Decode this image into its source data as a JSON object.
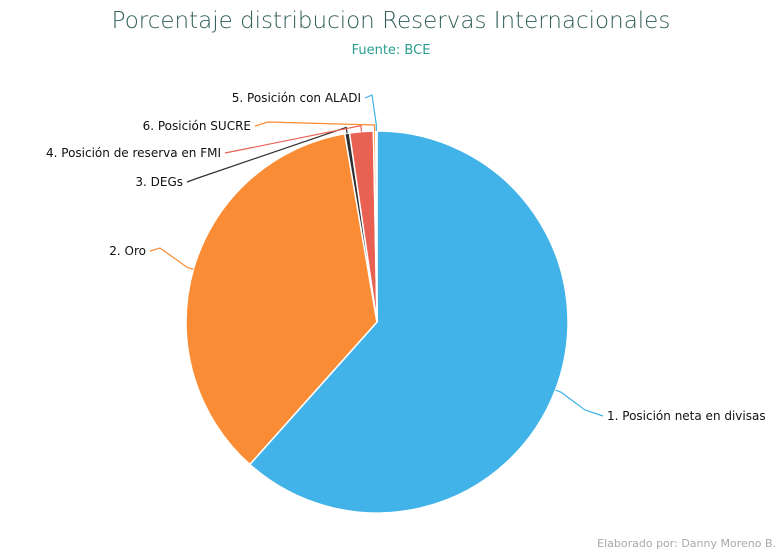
{
  "chart_data": {
    "type": "pie",
    "title": "Porcentaje distribucion Reservas Internacionales",
    "subtitle": "Fuente: BCE",
    "slices": [
      {
        "label": "1. Posición neta en divisas",
        "value": 61.6,
        "color": "#42b3e8"
      },
      {
        "label": "2. Oro",
        "value": 35.7,
        "color": "#f98c34"
      },
      {
        "label": "3. DEGs",
        "value": 0.4,
        "color": "#2f2f2f"
      },
      {
        "label": "4. Posición de reserva en FMI",
        "value": 2.0,
        "color": "#e86153"
      },
      {
        "label": "6. Posición SUCRE",
        "value": 0.2,
        "color": "#f98c34"
      },
      {
        "label": "5. Posición con ALADI",
        "value": 0.1,
        "color": "#42b3e8"
      }
    ]
  },
  "footer": {
    "credit": "Elaborado por: Danny Moreno B."
  }
}
